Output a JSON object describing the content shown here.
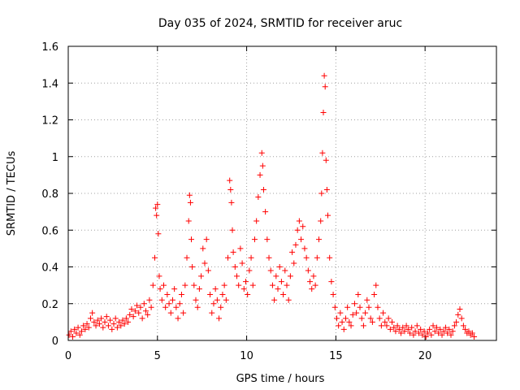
{
  "chart_data": {
    "type": "scatter",
    "title": "Day 035 of 2024, SRMTID for receiver aruc",
    "xlabel": "GPS time / hours",
    "ylabel": "SRMTID / TECUs",
    "xlim": [
      0,
      24
    ],
    "ylim": [
      0,
      1.6
    ],
    "x_ticks": [
      0,
      5,
      10,
      15,
      20
    ],
    "x_tick_labels": [
      "0",
      "5",
      "10",
      "15",
      "20"
    ],
    "y_ticks": [
      0,
      0.2,
      0.4,
      0.6,
      0.8,
      1,
      1.2,
      1.4,
      1.6
    ],
    "y_tick_labels": [
      "0",
      "0.2",
      "0.4",
      "0.6",
      "0.8",
      "1",
      "1.2",
      "1.4",
      "1.6"
    ],
    "grid": true,
    "marker": "+",
    "marker_color": "#ff0000",
    "series": [
      {
        "name": "SRMTID",
        "points": [
          [
            0.05,
            0.03
          ],
          [
            0.15,
            0.05
          ],
          [
            0.25,
            0.02
          ],
          [
            0.35,
            0.06
          ],
          [
            0.45,
            0.04
          ],
          [
            0.55,
            0.07
          ],
          [
            0.65,
            0.03
          ],
          [
            0.75,
            0.05
          ],
          [
            0.85,
            0.08
          ],
          [
            0.95,
            0.06
          ],
          [
            1.05,
            0.09
          ],
          [
            1.15,
            0.07
          ],
          [
            1.25,
            0.12
          ],
          [
            1.35,
            0.15
          ],
          [
            1.45,
            0.1
          ],
          [
            1.55,
            0.08
          ],
          [
            1.65,
            0.11
          ],
          [
            1.75,
            0.09
          ],
          [
            1.85,
            0.12
          ],
          [
            1.95,
            0.07
          ],
          [
            2.05,
            0.1
          ],
          [
            2.15,
            0.13
          ],
          [
            2.25,
            0.08
          ],
          [
            2.35,
            0.11
          ],
          [
            2.45,
            0.06
          ],
          [
            2.55,
            0.09
          ],
          [
            2.65,
            0.12
          ],
          [
            2.75,
            0.07
          ],
          [
            2.85,
            0.1
          ],
          [
            2.95,
            0.08
          ],
          [
            3.05,
            0.11
          ],
          [
            3.15,
            0.09
          ],
          [
            3.25,
            0.12
          ],
          [
            3.35,
            0.1
          ],
          [
            3.45,
            0.14
          ],
          [
            3.55,
            0.17
          ],
          [
            3.65,
            0.13
          ],
          [
            3.75,
            0.16
          ],
          [
            3.85,
            0.19
          ],
          [
            3.95,
            0.15
          ],
          [
            4.05,
            0.18
          ],
          [
            4.15,
            0.12
          ],
          [
            4.25,
            0.2
          ],
          [
            4.35,
            0.16
          ],
          [
            4.45,
            0.14
          ],
          [
            4.55,
            0.22
          ],
          [
            4.65,
            0.18
          ],
          [
            4.75,
            0.3
          ],
          [
            4.85,
            0.45
          ],
          [
            4.9,
            0.72
          ],
          [
            4.95,
            0.68
          ],
          [
            5.0,
            0.74
          ],
          [
            5.05,
            0.58
          ],
          [
            5.1,
            0.35
          ],
          [
            5.15,
            0.28
          ],
          [
            5.25,
            0.22
          ],
          [
            5.35,
            0.3
          ],
          [
            5.45,
            0.18
          ],
          [
            5.55,
            0.25
          ],
          [
            5.65,
            0.2
          ],
          [
            5.75,
            0.15
          ],
          [
            5.85,
            0.22
          ],
          [
            5.95,
            0.28
          ],
          [
            6.05,
            0.18
          ],
          [
            6.15,
            0.12
          ],
          [
            6.25,
            0.2
          ],
          [
            6.35,
            0.25
          ],
          [
            6.45,
            0.15
          ],
          [
            6.55,
            0.3
          ],
          [
            6.65,
            0.45
          ],
          [
            6.75,
            0.65
          ],
          [
            6.8,
            0.79
          ],
          [
            6.85,
            0.75
          ],
          [
            6.9,
            0.55
          ],
          [
            6.95,
            0.4
          ],
          [
            7.05,
            0.3
          ],
          [
            7.15,
            0.22
          ],
          [
            7.25,
            0.18
          ],
          [
            7.35,
            0.28
          ],
          [
            7.45,
            0.35
          ],
          [
            7.55,
            0.5
          ],
          [
            7.65,
            0.42
          ],
          [
            7.75,
            0.55
          ],
          [
            7.85,
            0.38
          ],
          [
            7.95,
            0.25
          ],
          [
            8.05,
            0.15
          ],
          [
            8.15,
            0.2
          ],
          [
            8.25,
            0.28
          ],
          [
            8.35,
            0.22
          ],
          [
            8.45,
            0.12
          ],
          [
            8.55,
            0.18
          ],
          [
            8.65,
            0.25
          ],
          [
            8.75,
            0.3
          ],
          [
            8.85,
            0.22
          ],
          [
            8.95,
            0.45
          ],
          [
            9.05,
            0.87
          ],
          [
            9.1,
            0.82
          ],
          [
            9.15,
            0.75
          ],
          [
            9.2,
            0.6
          ],
          [
            9.25,
            0.48
          ],
          [
            9.35,
            0.4
          ],
          [
            9.45,
            0.35
          ],
          [
            9.55,
            0.3
          ],
          [
            9.65,
            0.5
          ],
          [
            9.75,
            0.42
          ],
          [
            9.85,
            0.28
          ],
          [
            9.95,
            0.32
          ],
          [
            10.05,
            0.25
          ],
          [
            10.15,
            0.38
          ],
          [
            10.25,
            0.45
          ],
          [
            10.35,
            0.3
          ],
          [
            10.45,
            0.55
          ],
          [
            10.55,
            0.65
          ],
          [
            10.65,
            0.78
          ],
          [
            10.75,
            0.9
          ],
          [
            10.85,
            1.02
          ],
          [
            10.9,
            0.95
          ],
          [
            10.95,
            0.82
          ],
          [
            11.05,
            0.7
          ],
          [
            11.15,
            0.55
          ],
          [
            11.25,
            0.45
          ],
          [
            11.35,
            0.38
          ],
          [
            11.45,
            0.3
          ],
          [
            11.55,
            0.22
          ],
          [
            11.65,
            0.35
          ],
          [
            11.75,
            0.28
          ],
          [
            11.85,
            0.4
          ],
          [
            11.95,
            0.32
          ],
          [
            12.05,
            0.25
          ],
          [
            12.15,
            0.38
          ],
          [
            12.25,
            0.3
          ],
          [
            12.35,
            0.22
          ],
          [
            12.45,
            0.35
          ],
          [
            12.55,
            0.48
          ],
          [
            12.65,
            0.42
          ],
          [
            12.75,
            0.52
          ],
          [
            12.85,
            0.6
          ],
          [
            12.95,
            0.65
          ],
          [
            13.05,
            0.55
          ],
          [
            13.15,
            0.62
          ],
          [
            13.25,
            0.5
          ],
          [
            13.35,
            0.45
          ],
          [
            13.45,
            0.38
          ],
          [
            13.55,
            0.32
          ],
          [
            13.65,
            0.28
          ],
          [
            13.75,
            0.35
          ],
          [
            13.85,
            0.3
          ],
          [
            13.95,
            0.45
          ],
          [
            14.05,
            0.55
          ],
          [
            14.15,
            0.65
          ],
          [
            14.2,
            0.8
          ],
          [
            14.25,
            1.02
          ],
          [
            14.3,
            1.24
          ],
          [
            14.35,
            1.44
          ],
          [
            14.4,
            1.38
          ],
          [
            14.45,
            0.98
          ],
          [
            14.5,
            0.82
          ],
          [
            14.55,
            0.68
          ],
          [
            14.65,
            0.45
          ],
          [
            14.75,
            0.32
          ],
          [
            14.85,
            0.25
          ],
          [
            14.95,
            0.18
          ],
          [
            15.05,
            0.12
          ],
          [
            15.15,
            0.08
          ],
          [
            15.25,
            0.15
          ],
          [
            15.35,
            0.1
          ],
          [
            15.45,
            0.06
          ],
          [
            15.55,
            0.12
          ],
          [
            15.65,
            0.18
          ],
          [
            15.75,
            0.1
          ],
          [
            15.85,
            0.08
          ],
          [
            15.95,
            0.14
          ],
          [
            16.05,
            0.2
          ],
          [
            16.15,
            0.15
          ],
          [
            16.25,
            0.25
          ],
          [
            16.35,
            0.18
          ],
          [
            16.45,
            0.12
          ],
          [
            16.55,
            0.08
          ],
          [
            16.65,
            0.15
          ],
          [
            16.75,
            0.22
          ],
          [
            16.85,
            0.18
          ],
          [
            16.95,
            0.12
          ],
          [
            17.05,
            0.1
          ],
          [
            17.15,
            0.25
          ],
          [
            17.25,
            0.3
          ],
          [
            17.35,
            0.18
          ],
          [
            17.45,
            0.12
          ],
          [
            17.55,
            0.08
          ],
          [
            17.65,
            0.15
          ],
          [
            17.75,
            0.1
          ],
          [
            17.85,
            0.08
          ],
          [
            17.95,
            0.12
          ],
          [
            18.05,
            0.06
          ],
          [
            18.15,
            0.1
          ],
          [
            18.25,
            0.07
          ],
          [
            18.35,
            0.05
          ],
          [
            18.45,
            0.08
          ],
          [
            18.55,
            0.06
          ],
          [
            18.65,
            0.04
          ],
          [
            18.75,
            0.07
          ],
          [
            18.85,
            0.05
          ],
          [
            18.95,
            0.08
          ],
          [
            19.05,
            0.06
          ],
          [
            19.15,
            0.04
          ],
          [
            19.25,
            0.07
          ],
          [
            19.35,
            0.03
          ],
          [
            19.45,
            0.05
          ],
          [
            19.55,
            0.08
          ],
          [
            19.65,
            0.04
          ],
          [
            19.75,
            0.06
          ],
          [
            19.85,
            0.03
          ],
          [
            19.95,
            0.05
          ],
          [
            20.05,
            0.02
          ],
          [
            20.15,
            0.04
          ],
          [
            20.25,
            0.06
          ],
          [
            20.35,
            0.03
          ],
          [
            20.45,
            0.08
          ],
          [
            20.55,
            0.05
          ],
          [
            20.65,
            0.07
          ],
          [
            20.75,
            0.04
          ],
          [
            20.85,
            0.06
          ],
          [
            20.95,
            0.03
          ],
          [
            21.05,
            0.05
          ],
          [
            21.15,
            0.07
          ],
          [
            21.25,
            0.04
          ],
          [
            21.35,
            0.06
          ],
          [
            21.45,
            0.03
          ],
          [
            21.55,
            0.05
          ],
          [
            21.65,
            0.08
          ],
          [
            21.75,
            0.1
          ],
          [
            21.85,
            0.14
          ],
          [
            21.95,
            0.17
          ],
          [
            22.05,
            0.12
          ],
          [
            22.15,
            0.08
          ],
          [
            22.25,
            0.06
          ],
          [
            22.35,
            0.04
          ],
          [
            22.45,
            0.05
          ],
          [
            22.55,
            0.03
          ],
          [
            22.65,
            0.04
          ],
          [
            22.75,
            0.02
          ]
        ]
      }
    ]
  }
}
